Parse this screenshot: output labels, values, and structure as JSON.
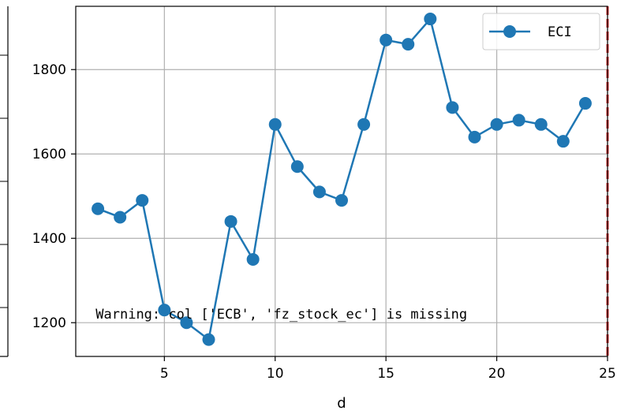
{
  "chart_data": {
    "type": "line",
    "title": "",
    "xlabel": "d",
    "ylabel": "",
    "xlim": [
      1.0,
      25.0
    ],
    "ylim": [
      1120,
      1950
    ],
    "xticks": [
      5,
      10,
      15,
      20,
      25
    ],
    "yticks": [
      1200,
      1400,
      1600,
      1800
    ],
    "grid": true,
    "legend_position": "top-right",
    "series": [
      {
        "name": "ECI",
        "color": "#1f77b4",
        "marker": "circle",
        "x": [
          2,
          3,
          4,
          5,
          6,
          7,
          8,
          9,
          10,
          11,
          12,
          13,
          14,
          15,
          16,
          17,
          18,
          19,
          20,
          21,
          22,
          23,
          24
        ],
        "y": [
          1470,
          1450,
          1490,
          1230,
          1200,
          1160,
          1440,
          1350,
          1670,
          1570,
          1510,
          1490,
          1670,
          1870,
          1860,
          1920,
          1710,
          1640,
          1670,
          1680,
          1670,
          1630,
          1720
        ]
      }
    ],
    "reference_line": {
      "x": 25,
      "color": "#d62728",
      "style": "dashed"
    },
    "annotation": {
      "text": "Warning: col ['ECB', 'fz_stock_ec'] is missing",
      "x": 1.9,
      "y": 1200
    }
  }
}
